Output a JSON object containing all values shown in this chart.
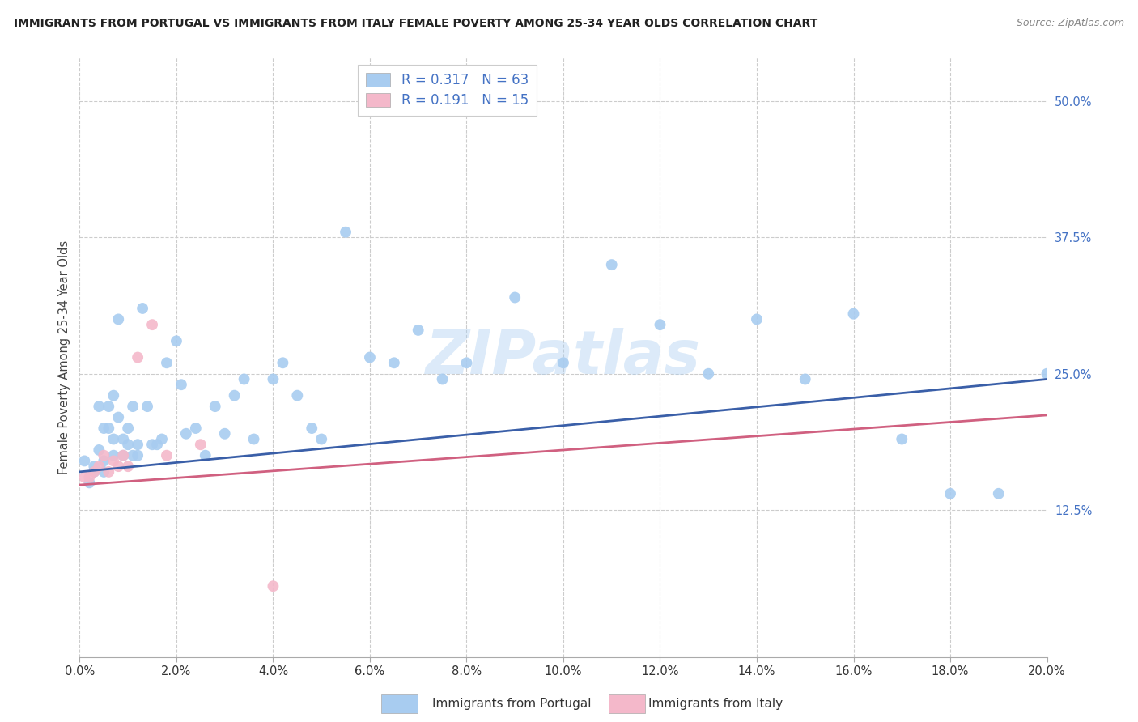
{
  "title": "IMMIGRANTS FROM PORTUGAL VS IMMIGRANTS FROM ITALY FEMALE POVERTY AMONG 25-34 YEAR OLDS CORRELATION CHART",
  "source": "Source: ZipAtlas.com",
  "ylabel": "Female Poverty Among 25-34 Year Olds",
  "xlim": [
    0.0,
    0.2
  ],
  "ylim": [
    -0.01,
    0.54
  ],
  "ytick_positions": [
    0.125,
    0.25,
    0.375,
    0.5
  ],
  "ytick_labels": [
    "12.5%",
    "25.0%",
    "37.5%",
    "50.0%"
  ],
  "xtick_positions": [
    0.0,
    0.02,
    0.04,
    0.06,
    0.08,
    0.1,
    0.12,
    0.14,
    0.16,
    0.18,
    0.2
  ],
  "xtick_labels": [
    "0.0%",
    "2.0%",
    "4.0%",
    "6.0%",
    "8.0%",
    "10.0%",
    "12.0%",
    "14.0%",
    "16.0%",
    "18.0%",
    "20.0%"
  ],
  "portugal_R": 0.317,
  "portugal_N": 63,
  "italy_R": 0.191,
  "italy_N": 15,
  "portugal_color": "#A8CCF0",
  "italy_color": "#F4B8CA",
  "portugal_line_color": "#3A5FA8",
  "italy_line_color": "#D06080",
  "legend_color": "#4472C4",
  "watermark": "ZIPatlas",
  "portugal_x": [
    0.001,
    0.002,
    0.003,
    0.003,
    0.004,
    0.004,
    0.005,
    0.005,
    0.005,
    0.006,
    0.006,
    0.007,
    0.007,
    0.007,
    0.008,
    0.008,
    0.009,
    0.009,
    0.01,
    0.01,
    0.011,
    0.011,
    0.012,
    0.012,
    0.013,
    0.014,
    0.015,
    0.016,
    0.017,
    0.018,
    0.02,
    0.021,
    0.022,
    0.024,
    0.026,
    0.028,
    0.03,
    0.032,
    0.034,
    0.036,
    0.04,
    0.042,
    0.045,
    0.048,
    0.05,
    0.055,
    0.06,
    0.065,
    0.07,
    0.075,
    0.08,
    0.09,
    0.1,
    0.11,
    0.12,
    0.13,
    0.14,
    0.15,
    0.16,
    0.17,
    0.18,
    0.19,
    0.2
  ],
  "portugal_y": [
    0.17,
    0.15,
    0.165,
    0.16,
    0.22,
    0.18,
    0.16,
    0.17,
    0.2,
    0.22,
    0.2,
    0.23,
    0.175,
    0.19,
    0.3,
    0.21,
    0.19,
    0.175,
    0.185,
    0.2,
    0.175,
    0.22,
    0.175,
    0.185,
    0.31,
    0.22,
    0.185,
    0.185,
    0.19,
    0.26,
    0.28,
    0.24,
    0.195,
    0.2,
    0.175,
    0.22,
    0.195,
    0.23,
    0.245,
    0.19,
    0.245,
    0.26,
    0.23,
    0.2,
    0.19,
    0.38,
    0.265,
    0.26,
    0.29,
    0.245,
    0.26,
    0.32,
    0.26,
    0.35,
    0.295,
    0.25,
    0.3,
    0.245,
    0.305,
    0.19,
    0.14,
    0.14,
    0.25
  ],
  "italy_x": [
    0.001,
    0.002,
    0.003,
    0.004,
    0.005,
    0.006,
    0.007,
    0.008,
    0.009,
    0.01,
    0.012,
    0.015,
    0.018,
    0.025,
    0.04
  ],
  "italy_y": [
    0.155,
    0.155,
    0.16,
    0.165,
    0.175,
    0.16,
    0.17,
    0.165,
    0.175,
    0.165,
    0.265,
    0.295,
    0.175,
    0.185,
    0.055
  ],
  "portugal_trend": [
    0.16,
    0.245
  ],
  "italy_trend": [
    0.148,
    0.212
  ],
  "trend_x": [
    0.0,
    0.2
  ]
}
